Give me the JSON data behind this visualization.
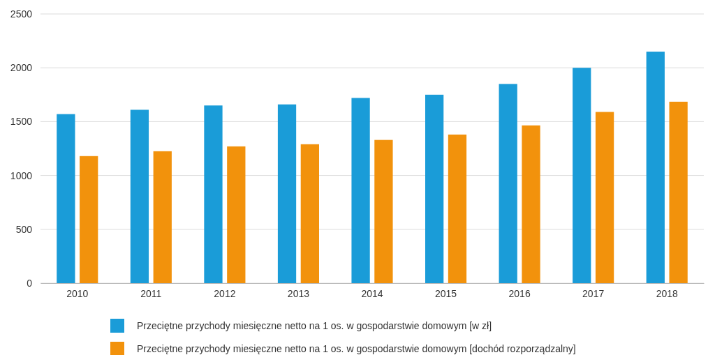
{
  "chart_data": {
    "type": "bar",
    "categories": [
      "2010",
      "2011",
      "2012",
      "2013",
      "2014",
      "2015",
      "2016",
      "2017",
      "2018"
    ],
    "series": [
      {
        "name": "Przeciętne przychody miesięczne netto na 1 os. w gospodarstwie domowym [w zł]",
        "color": "#1a9cd8",
        "values": [
          1570,
          1610,
          1650,
          1660,
          1720,
          1750,
          1850,
          2000,
          2150
        ]
      },
      {
        "name": "Przeciętne przychody miesięczne netto na 1 os. w gospodarstwie domowym [dochód rozporządzalny]",
        "color": "#f2920c",
        "values": [
          1180,
          1225,
          1270,
          1290,
          1330,
          1380,
          1465,
          1590,
          1685
        ]
      }
    ],
    "ylim": [
      0,
      2500
    ],
    "yticks": [
      0,
      500,
      1000,
      1500,
      2000,
      2500
    ],
    "grid": "y",
    "legend": "bottom"
  }
}
